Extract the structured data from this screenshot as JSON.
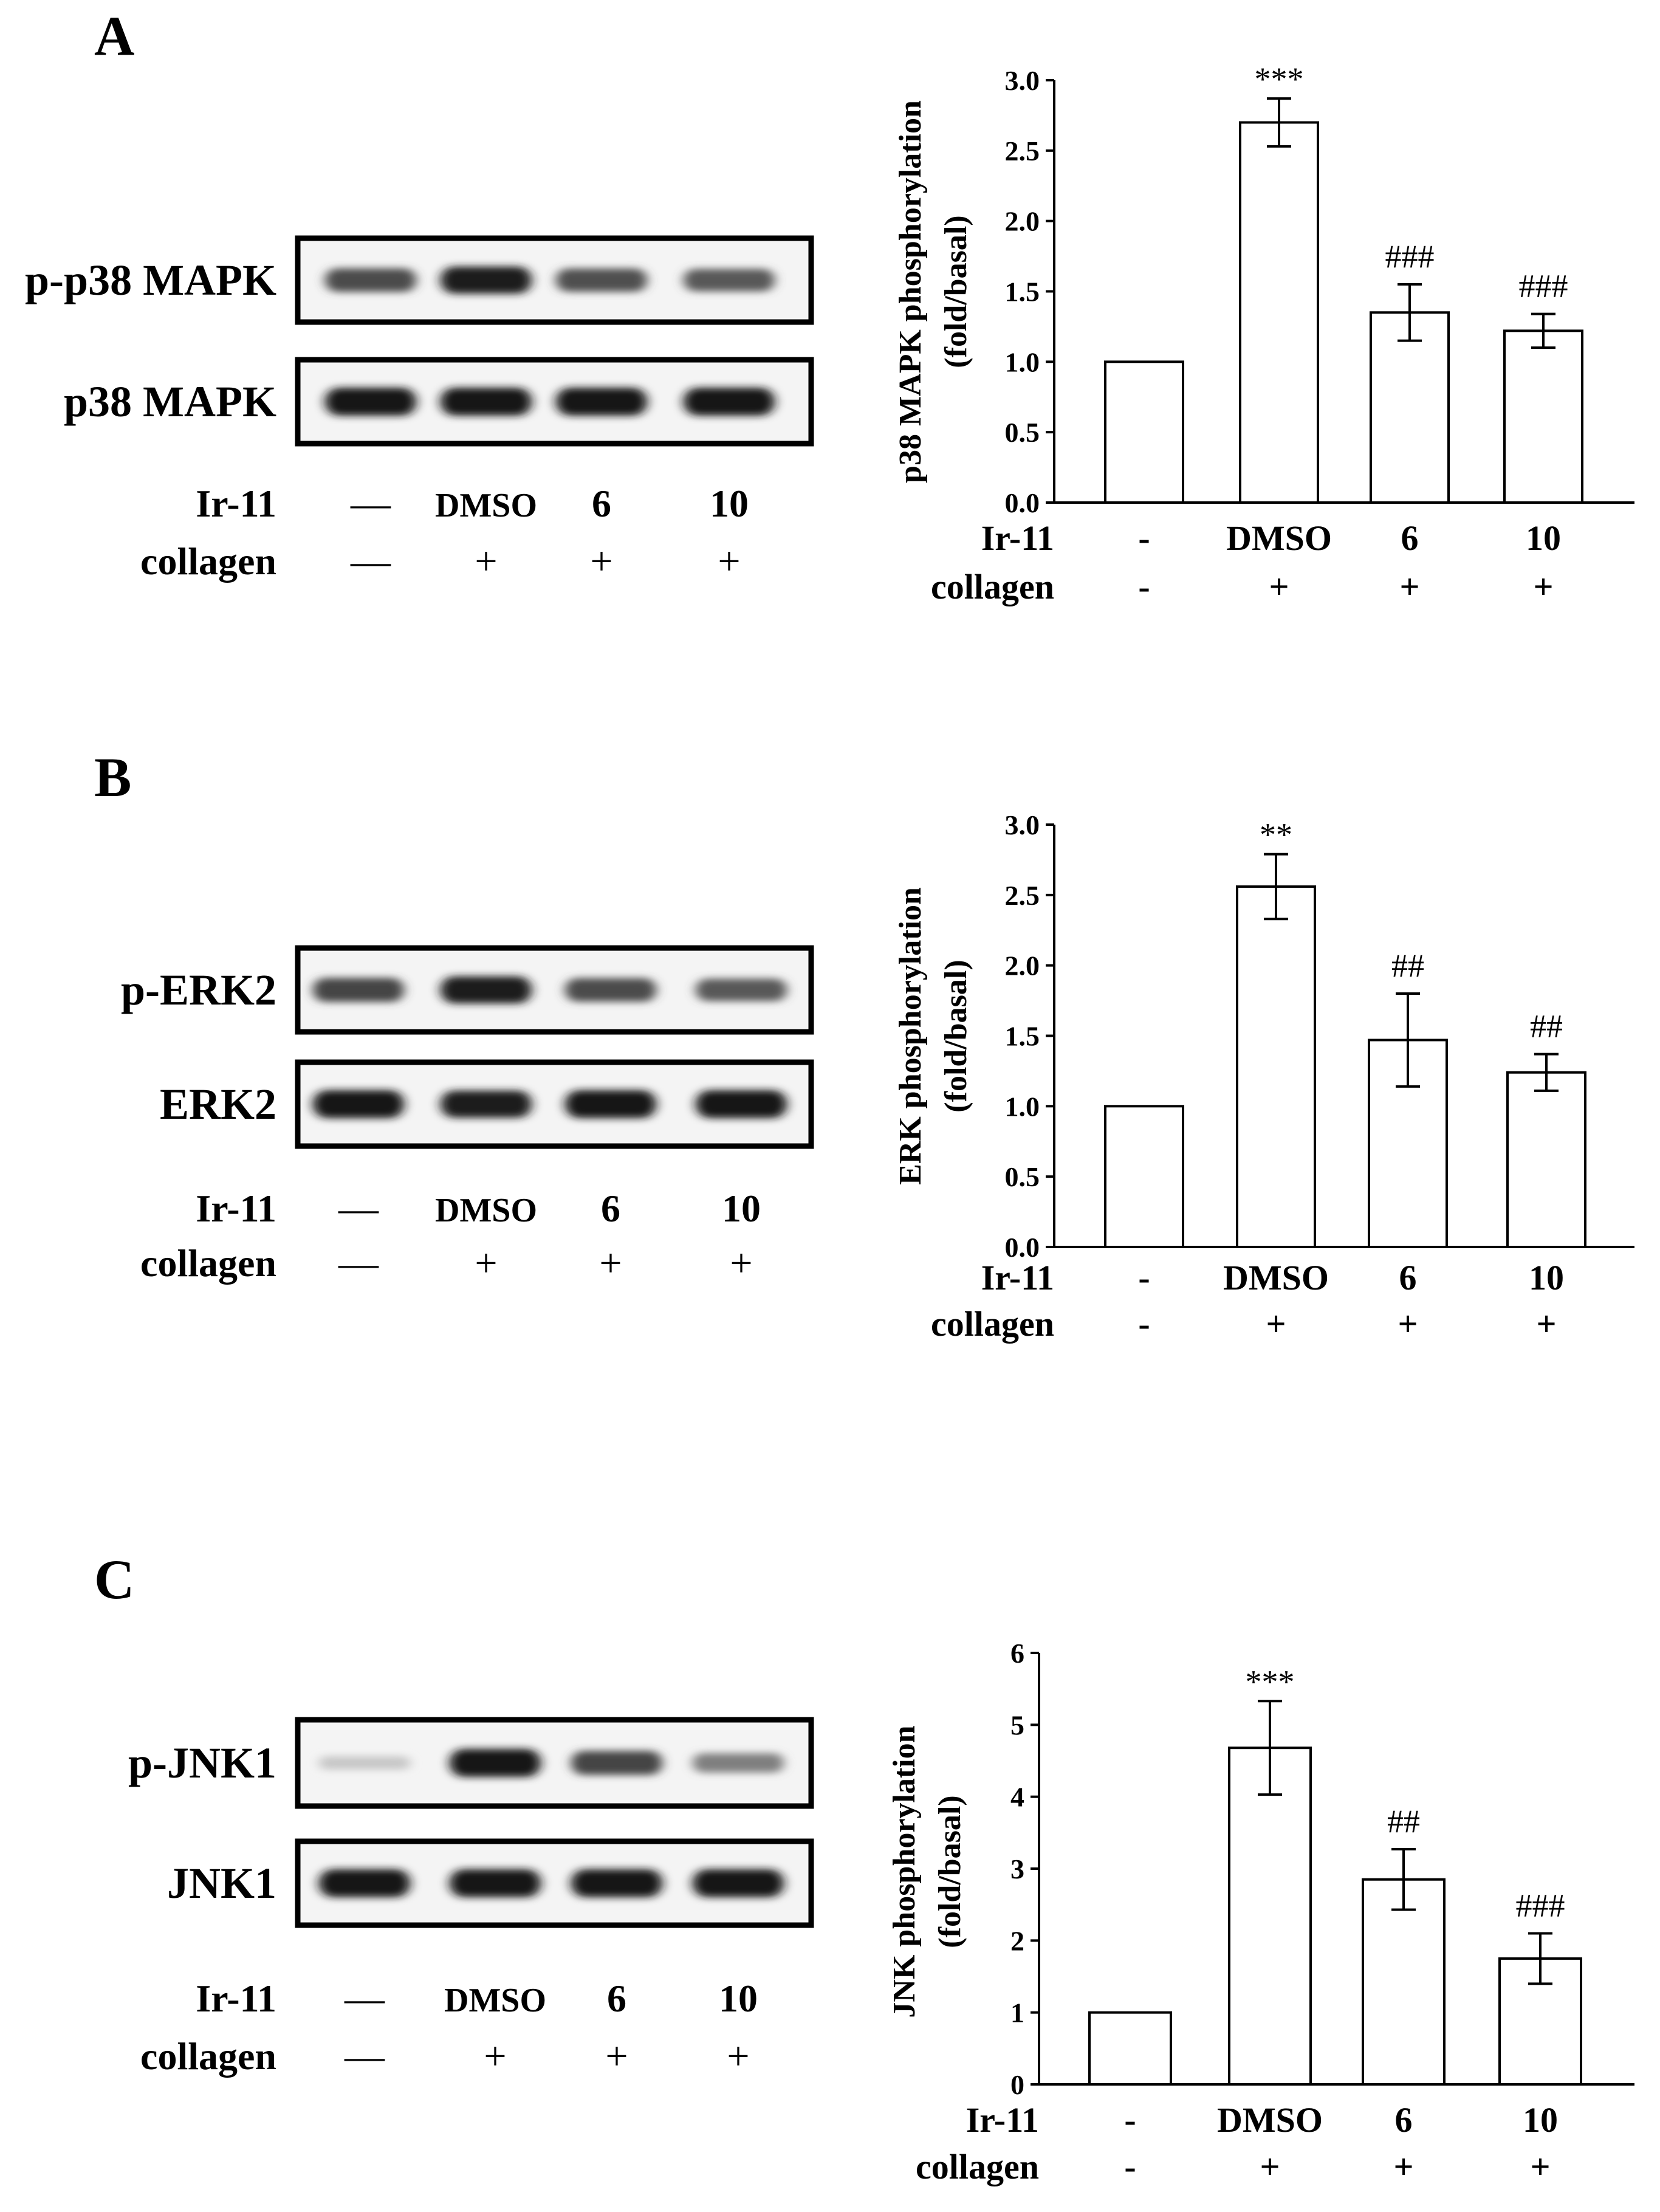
{
  "panels": [
    {
      "letter": "A",
      "blots": [
        {
          "label": "p-p38 MAPK",
          "intensities": [
            0.72,
            0.95,
            0.7,
            0.65
          ]
        },
        {
          "label": "p38 MAPK",
          "intensities": [
            1.0,
            1.0,
            1.0,
            1.0
          ]
        }
      ],
      "conditions": {
        "rows": [
          {
            "label": "Ir-11",
            "values": [
              "—",
              "DMSO",
              "6",
              "10"
            ]
          },
          {
            "label": "collagen",
            "values": [
              "—",
              "+",
              "+",
              "+"
            ]
          }
        ]
      },
      "chart_data": {
        "type": "bar",
        "ylabel_lines": [
          "p38 MAPK phosphorylation",
          "(fold/basal)"
        ],
        "yticks": [
          "0.0",
          "0.5",
          "1.0",
          "1.5",
          "2.0",
          "2.5",
          "3.0"
        ],
        "ylim": [
          0,
          3.0
        ],
        "values": [
          1.0,
          2.7,
          1.35,
          1.22
        ],
        "errors": [
          0,
          0.17,
          0.2,
          0.12
        ],
        "annotations": [
          "",
          "***",
          "###",
          "###"
        ],
        "row_labels": [
          "Ir-11",
          "collagen"
        ],
        "categories": [
          "-",
          "DMSO",
          "6",
          "10"
        ],
        "collagen": [
          "-",
          "+",
          "+",
          "+"
        ]
      }
    },
    {
      "letter": "B",
      "blots": [
        {
          "label": "p-ERK2",
          "intensities": [
            0.75,
            0.95,
            0.72,
            0.65
          ]
        },
        {
          "label": "ERK2",
          "intensities": [
            1.0,
            0.95,
            1.0,
            1.0
          ]
        }
      ],
      "conditions": {
        "rows": [
          {
            "label": "Ir-11",
            "values": [
              "—",
              "DMSO",
              "6",
              "10"
            ]
          },
          {
            "label": "collagen",
            "values": [
              "—",
              "+",
              "+",
              "+"
            ]
          }
        ]
      },
      "chart_data": {
        "type": "bar",
        "ylabel_lines": [
          "ERK phosphorylation",
          "(fold/basal)"
        ],
        "yticks": [
          "0.0",
          "0.5",
          "1.0",
          "1.5",
          "2.0",
          "2.5",
          "3.0"
        ],
        "ylim": [
          0,
          3.0
        ],
        "values": [
          1.0,
          2.56,
          1.47,
          1.24
        ],
        "errors": [
          0,
          0.23,
          0.33,
          0.13
        ],
        "annotations": [
          "",
          "**",
          "##",
          "##"
        ],
        "row_labels": [
          "Ir-11",
          "collagen"
        ],
        "categories": [
          "-",
          "DMSO",
          "6",
          "10"
        ],
        "collagen": [
          "-",
          "+",
          "+",
          "+"
        ]
      }
    },
    {
      "letter": "C",
      "blots": [
        {
          "label": "p-JNK1",
          "intensities": [
            0.08,
            1.0,
            0.75,
            0.45
          ]
        },
        {
          "label": "JNK1",
          "intensities": [
            1.0,
            1.0,
            1.0,
            1.0
          ]
        }
      ],
      "conditions": {
        "rows": [
          {
            "label": "Ir-11",
            "values": [
              "—",
              "DMSO",
              "6",
              "10"
            ]
          },
          {
            "label": "collagen",
            "values": [
              "—",
              "+",
              "+",
              "+"
            ]
          }
        ]
      },
      "chart_data": {
        "type": "bar",
        "ylabel_lines": [
          "JNK phosphorylation",
          "(fold/basal)"
        ],
        "yticks": [
          "0",
          "1",
          "2",
          "3",
          "4",
          "5",
          "6"
        ],
        "ylim": [
          0,
          6
        ],
        "values": [
          1.0,
          4.68,
          2.85,
          1.75
        ],
        "errors": [
          0,
          0.65,
          0.42,
          0.35
        ],
        "annotations": [
          "",
          "***",
          "##",
          "###"
        ],
        "row_labels": [
          "Ir-11",
          "collagen"
        ],
        "categories": [
          "-",
          "DMSO",
          "6",
          "10"
        ],
        "collagen": [
          "-",
          "+",
          "+",
          "+"
        ]
      }
    }
  ]
}
